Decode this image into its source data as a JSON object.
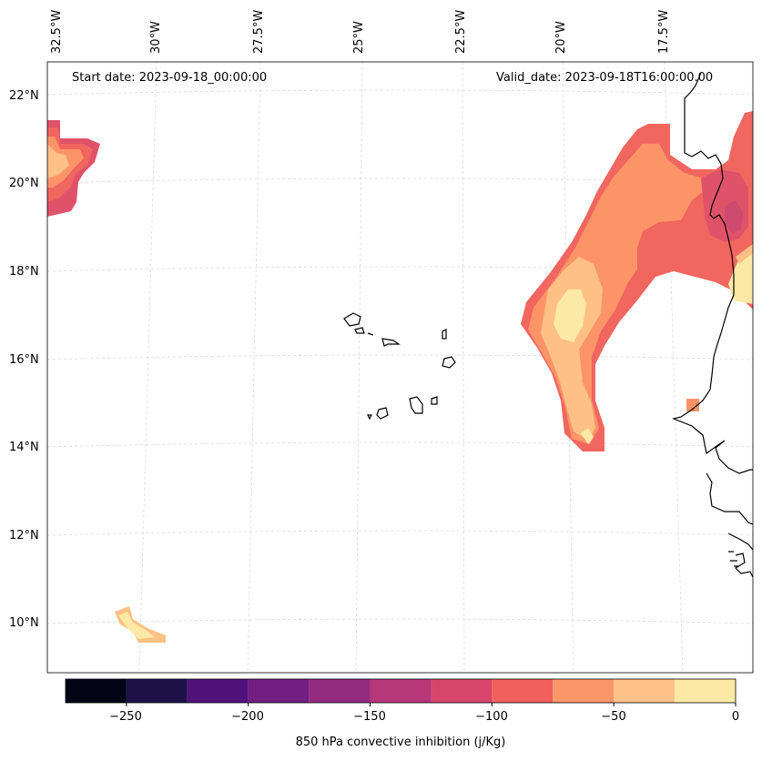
{
  "header": {
    "start_date": "Start date: 2023-09-18_00:00:00",
    "valid_date": "Valid_date: 2023-09-18T16:00:00.00"
  },
  "longitude_labels": [
    "32.5°W",
    "30°W",
    "27.5°W",
    "25°W",
    "22.5°W",
    "20°W",
    "17.5°W"
  ],
  "latitude_labels": [
    "22°N",
    "20°N",
    "18°N",
    "16°N",
    "14°N",
    "12°N",
    "10°N"
  ],
  "colorbar": {
    "title": "850 hPa convective inhibition (j/Kg)",
    "ticks": [
      "−250",
      "−200",
      "−150",
      "−100",
      "−50",
      "0"
    ],
    "levels": [
      -275,
      -250,
      -225,
      -200,
      -175,
      -150,
      -125,
      -100,
      -75,
      -50,
      -25,
      0
    ],
    "colors": [
      "#050416",
      "#1d1147",
      "#4f127b",
      "#721f81",
      "#932b80",
      "#b73779",
      "#d8456c",
      "#f1605d",
      "#fd9668",
      "#fec287",
      "#fde9a6"
    ]
  },
  "field_colors": {
    "band_m125_m100": "#e0526a",
    "band_m100_m75": "#f1665f",
    "band_m75_m50": "#fc9468",
    "band_m50_m25": "#fec085",
    "band_m25_0": "#fde9a6",
    "band_m150_m125": "#cf4a6f"
  }
}
